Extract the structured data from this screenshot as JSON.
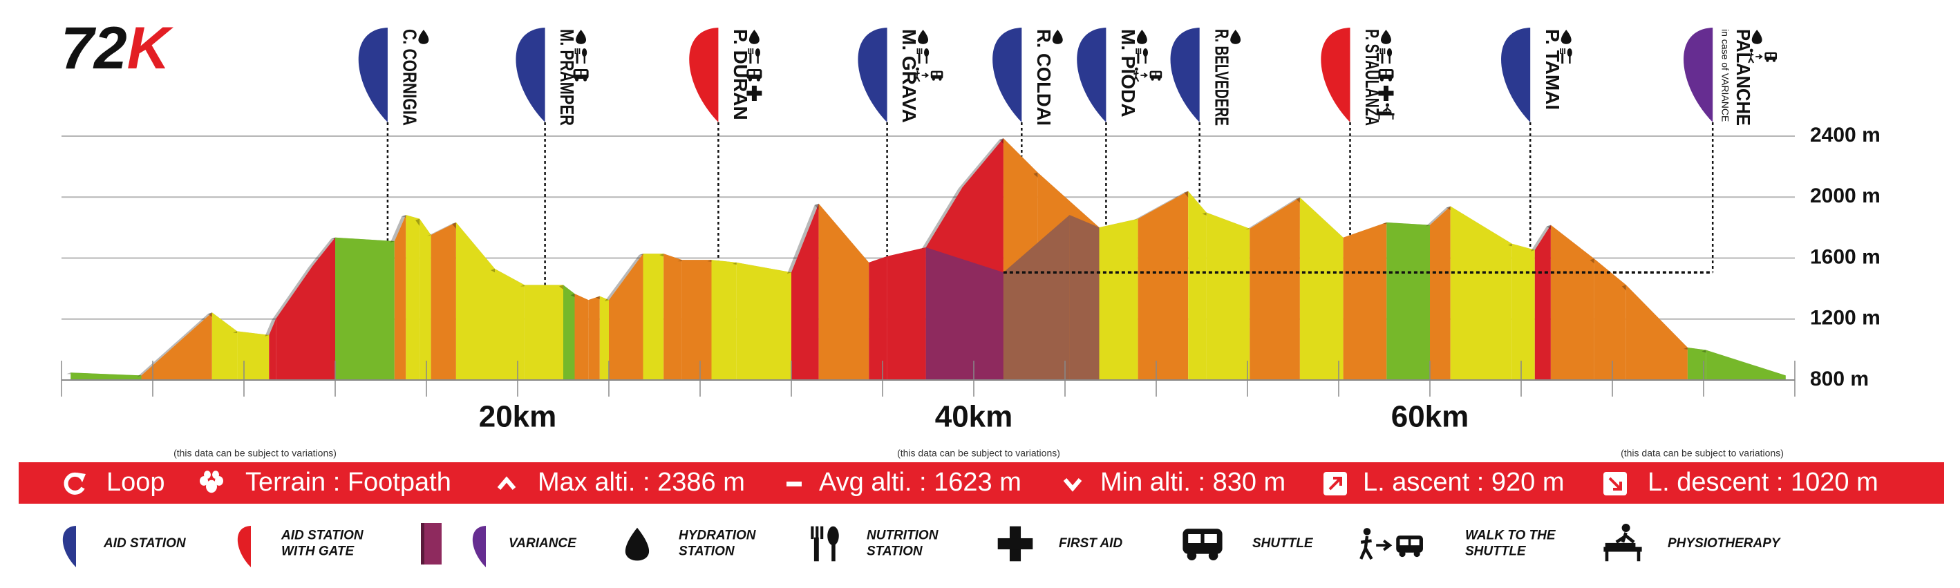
{
  "logo": {
    "number": "72",
    "letter": "K"
  },
  "chart_data": {
    "type": "area",
    "x": [
      0.4,
      3.5,
      6.6,
      7.7,
      9.1,
      9.4,
      11.0,
      12.0,
      14.6,
      15.1,
      15.7,
      16.2,
      17.3,
      19.0,
      20.3,
      22.0,
      22.5,
      23.1,
      23.6,
      24.0,
      25.5,
      26.4,
      27.2,
      28.5,
      29.6,
      32.0,
      33.2,
      35.4,
      36.2,
      37.9,
      39.5,
      41.3,
      42.8,
      45.5,
      47.2,
      49.4,
      50.2,
      52.1,
      54.3,
      56.2,
      58.1,
      60.0,
      60.9,
      63.6,
      64.6,
      65.3,
      67.2,
      68.6,
      71.3,
      72.1,
      75.6
    ],
    "values": [
      849,
      830,
      1243,
      1120,
      1095,
      1202,
      1547,
      1735,
      1711,
      1883,
      1858,
      1752,
      1834,
      1530,
      1424,
      1424,
      1366,
      1325,
      1350,
      1325,
      1629,
      1629,
      1588,
      1588,
      1571,
      1506,
      1957,
      1571,
      1612,
      1670,
      2064,
      2386,
      2162,
      1801,
      1858,
      2039,
      1899,
      1793,
      1998,
      1735,
      1834,
      1817,
      1940,
      1694,
      1653,
      1817,
      1596,
      1424,
      1013,
      997,
      830
    ],
    "segment_colors": [
      "#76b82a",
      "#e6801e",
      "#e0dc1a",
      "#e0dc1a",
      "#d9202a",
      "#d9202a",
      "#d9202a",
      "#76b82a",
      "#e6801e",
      "#e0dc1a",
      "#e0dc1a",
      "#e6801e",
      "#e0dc1a",
      "#e0dc1a",
      "#e0dc1a",
      "#76b82a",
      "#e6801e",
      "#e6801e",
      "#e0dc1a",
      "#e6801e",
      "#e0dc1a",
      "#e6801e",
      "#e6801e",
      "#e0dc1a",
      "#e0dc1a",
      "#d9202a",
      "#e6801e",
      "#d9202a",
      "#d9202a",
      "#d9202a",
      "#d9202a",
      "#e6801e",
      "#e6801e",
      "#e0dc1a",
      "#e6801e",
      "#e0dc1a",
      "#e0dc1a",
      "#e6801e",
      "#e0dc1a",
      "#e6801e",
      "#76b82a",
      "#e6801e",
      "#e0dc1a",
      "#e0dc1a",
      "#d9202a",
      "#e6801e",
      "#e6801e",
      "#e6801e",
      "#76b82a",
      "#76b82a"
    ],
    "variance": {
      "x": [
        37.9,
        41.3,
        44.2,
        45.5
      ],
      "values": [
        1670,
        1506,
        1883,
        1801
      ],
      "colors": [
        "#8e2a5e",
        "#9b6048",
        "#9b6048"
      ]
    },
    "xlim": [
      0,
      76
    ],
    "xticks": [
      {
        "value": 20,
        "label": "20km"
      },
      {
        "value": 40,
        "label": "40km"
      },
      {
        "value": 60,
        "label": "60km"
      }
    ],
    "xminorticks": [
      0,
      4,
      8,
      12,
      16,
      20,
      24,
      28,
      32,
      36,
      40,
      44,
      48,
      52,
      56,
      60,
      64,
      68,
      72,
      76
    ],
    "ylim": [
      800,
      2400
    ],
    "yticks": [
      {
        "value": 800,
        "label": "800 m"
      },
      {
        "value": 1200,
        "label": "1200 m"
      },
      {
        "value": 1600,
        "label": "1600 m"
      },
      {
        "value": 2000,
        "label": "2000 m"
      },
      {
        "value": 2400,
        "label": "2400 m"
      }
    ],
    "grid": true,
    "stations": [
      {
        "name": "C. CORNIGIA",
        "km": 14.3,
        "color": "#2b3990"
      },
      {
        "name": "M. PRAMPER",
        "km": 21.2,
        "color": "#2b3990"
      },
      {
        "name": "P. DURAN",
        "km": 28.8,
        "color": "#e31e24"
      },
      {
        "name": "M. GRAVA",
        "km": 36.2,
        "color": "#2b3990"
      },
      {
        "name": "R. COLDAI",
        "km": 42.1,
        "color": "#2b3990"
      },
      {
        "name": "M. PIODA",
        "km": 45.8,
        "color": "#2b3990"
      },
      {
        "name": "R. BELVEDERE",
        "km": 49.9,
        "color": "#2b3990"
      },
      {
        "name": "P. STAULANZA",
        "km": 56.5,
        "color": "#e31e24"
      },
      {
        "name": "P. TAMAI",
        "km": 64.4,
        "color": "#2b3990"
      },
      {
        "name": "PALANCHE",
        "km": 72.4,
        "color": "#662d91",
        "note": "in case of VARIANCE"
      }
    ]
  },
  "notes": [
    "(this data can be subject to variations)",
    "(this data can be subject to variations)",
    "(this data can be subject to variations)"
  ],
  "stats": [
    "Loop",
    "Terrain : Footpath",
    "Max alti. : 2386 m",
    "Avg alti. : 1623 m",
    "Min alti. : 830 m",
    "L. ascent : 920 m",
    "L. descent : 1020 m"
  ],
  "legend": [
    {
      "label": [
        "AID STATION"
      ]
    },
    {
      "label": [
        "AID STATION",
        "WITH GATE"
      ]
    },
    {
      "label": [
        "VARIANCE"
      ]
    },
    {
      "label": [
        "HYDRATION",
        "STATION"
      ]
    },
    {
      "label": [
        "NUTRITION",
        "STATION"
      ]
    },
    {
      "label": [
        "FIRST AID"
      ]
    },
    {
      "label": [
        "SHUTTLE"
      ]
    },
    {
      "label": [
        "WALK TO THE",
        "SHUTTLE"
      ]
    },
    {
      "label": [
        "PHYSIOTHERAPY"
      ]
    }
  ]
}
